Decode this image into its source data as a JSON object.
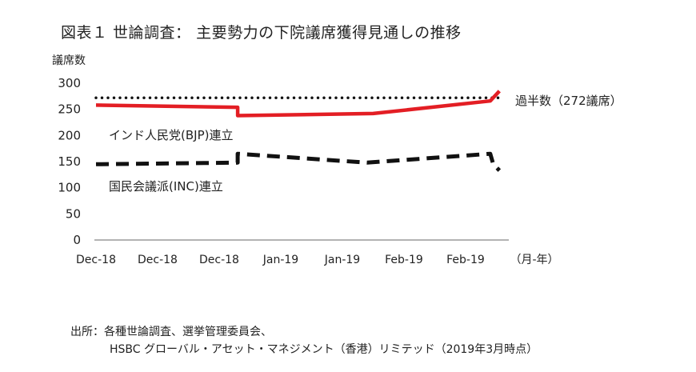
{
  "chart_data": {
    "type": "line",
    "title": "図表１ 世論調査： 主要勢力の下院議席獲得見通しの推移",
    "ylabel": "議席数",
    "xlabel": "（月-年）",
    "ylim": [
      0,
      300
    ],
    "yticks": [
      0,
      50,
      100,
      150,
      200,
      250,
      300
    ],
    "x_tick_labels": [
      "Dec-18",
      "Dec-18",
      "Dec-18",
      "Jan-19",
      "Jan-19",
      "Feb-19",
      "Feb-19"
    ],
    "x_index_range": [
      0,
      6.65
    ],
    "grid": false,
    "reference_line": {
      "label": "過半数（272議席）",
      "value": 272,
      "style": "dotted",
      "color": "#111111"
    },
    "series": [
      {
        "name": "インド人民党(BJP)連立",
        "color": "#e31e24",
        "style": "solid",
        "points": [
          {
            "x": 0,
            "y": 258
          },
          {
            "x": 2.3,
            "y": 254
          },
          {
            "x": 2.3,
            "y": 238
          },
          {
            "x": 4.5,
            "y": 242
          },
          {
            "x": 6.4,
            "y": 266
          },
          {
            "x": 6.55,
            "y": 285
          }
        ]
      },
      {
        "name": "国民会議派(INC)連立",
        "color": "#111111",
        "style": "dashed",
        "points": [
          {
            "x": 0,
            "y": 145
          },
          {
            "x": 2.3,
            "y": 148
          },
          {
            "x": 2.3,
            "y": 165
          },
          {
            "x": 4.4,
            "y": 148
          },
          {
            "x": 6.4,
            "y": 165
          },
          {
            "x": 6.45,
            "y": 145
          },
          {
            "x": 6.55,
            "y": 133
          }
        ]
      }
    ]
  },
  "source": {
    "line1": "出所：各種世論調査、選挙管理委員会、",
    "line2": "HSBC グローバル・アセット・マネジメント（香港）リミテッド（2019年3月時点）"
  }
}
